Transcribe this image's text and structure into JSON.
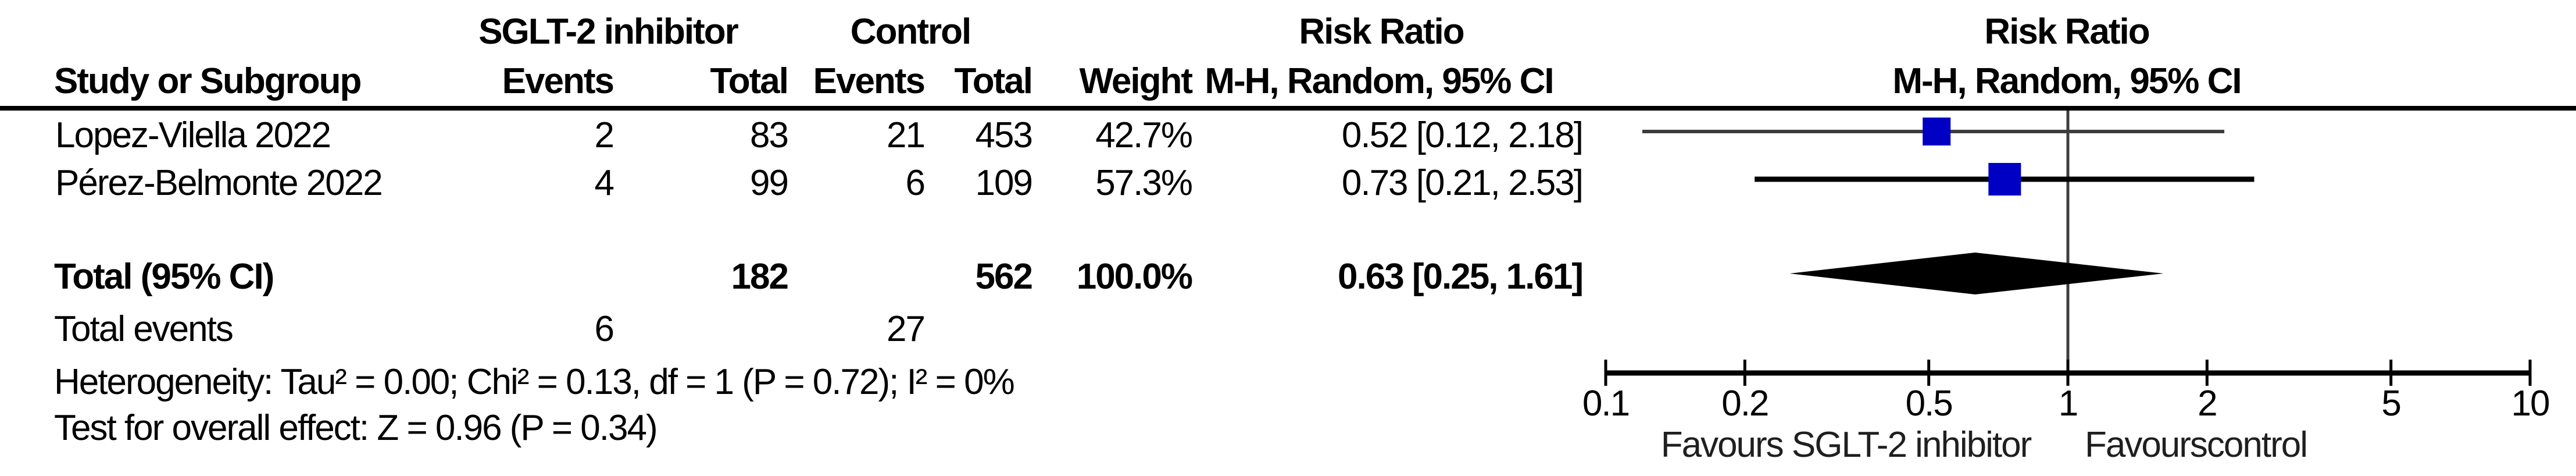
{
  "colors": {
    "background": "#FFFFFF",
    "text": "#000000",
    "square": "#0000C4",
    "diamond": "#000000",
    "ci_line_1": "#3D3D3D",
    "ci_line_2": "#000000",
    "null_line": "#3D3D3D",
    "axis": "#000000"
  },
  "table": {
    "headers": {
      "group_experimental": "SGLT-2 inhibitor",
      "group_control": "Control",
      "study": "Study or Subgroup",
      "events_exp": "Events",
      "total_exp": "Total",
      "events_ctrl": "Events",
      "total_ctrl": "Total",
      "weight": "Weight",
      "risk_ratio_text": "Risk Ratio",
      "risk_ratio_method_text": "M-H, Random, 95% CI",
      "risk_ratio_plot": "Risk Ratio",
      "risk_ratio_method_plot": "M-H, Random, 95% CI"
    },
    "rows": [
      {
        "study": "Lopez-Vilella 2022",
        "events_exp": "2",
        "total_exp": "83",
        "events_ctrl": "21",
        "total_ctrl": "453",
        "weight": "42.7%",
        "rr_ci": "0.52 [0.12, 2.18]"
      },
      {
        "study": "Pérez-Belmonte 2022",
        "events_exp": "4",
        "total_exp": "99",
        "events_ctrl": "6",
        "total_ctrl": "109",
        "weight": "57.3%",
        "rr_ci": "0.73 [0.21, 2.53]"
      }
    ],
    "total_row": {
      "label": "Total (95% CI)",
      "total_exp": "182",
      "total_ctrl": "562",
      "weight": "100.0%",
      "rr_ci": "0.63 [0.25, 1.61]"
    },
    "total_events_row": {
      "label": "Total events",
      "events_exp": "6",
      "events_ctrl": "27"
    },
    "heterogeneity": "Heterogeneity: Tau² = 0.00; Chi² = 0.13, df = 1 (P = 0.72); I² = 0%",
    "overall_effect": "Test for overall effect: Z = 0.96 (P = 0.34)"
  },
  "chart_data": {
    "type": "forest",
    "effect_measure": "Risk Ratio",
    "method": "M-H, Random, 95% CI",
    "x_scale": "log",
    "xlim": [
      0.1,
      10
    ],
    "null_line_value": 1,
    "x_ticks": [
      0.1,
      0.2,
      0.5,
      1,
      2,
      5,
      10
    ],
    "x_tick_labels": [
      "0.1",
      "0.2",
      "0.5",
      "1",
      "2",
      "5",
      "10"
    ],
    "studies": [
      {
        "name": "Lopez-Vilella 2022",
        "rr": 0.52,
        "ci_low": 0.12,
        "ci_high": 2.18,
        "weight_pct": 42.7
      },
      {
        "name": "Pérez-Belmonte 2022",
        "rr": 0.73,
        "ci_low": 0.21,
        "ci_high": 2.53,
        "weight_pct": 57.3
      }
    ],
    "overall": {
      "label": "Total (95% CI)",
      "rr": 0.63,
      "ci_low": 0.25,
      "ci_high": 1.61,
      "weight_pct": 100.0
    },
    "favours_left": "Favours SGLT-2 inhibitor",
    "favours_right": "Favourscontrol",
    "legend_position": "none",
    "grid": false
  }
}
